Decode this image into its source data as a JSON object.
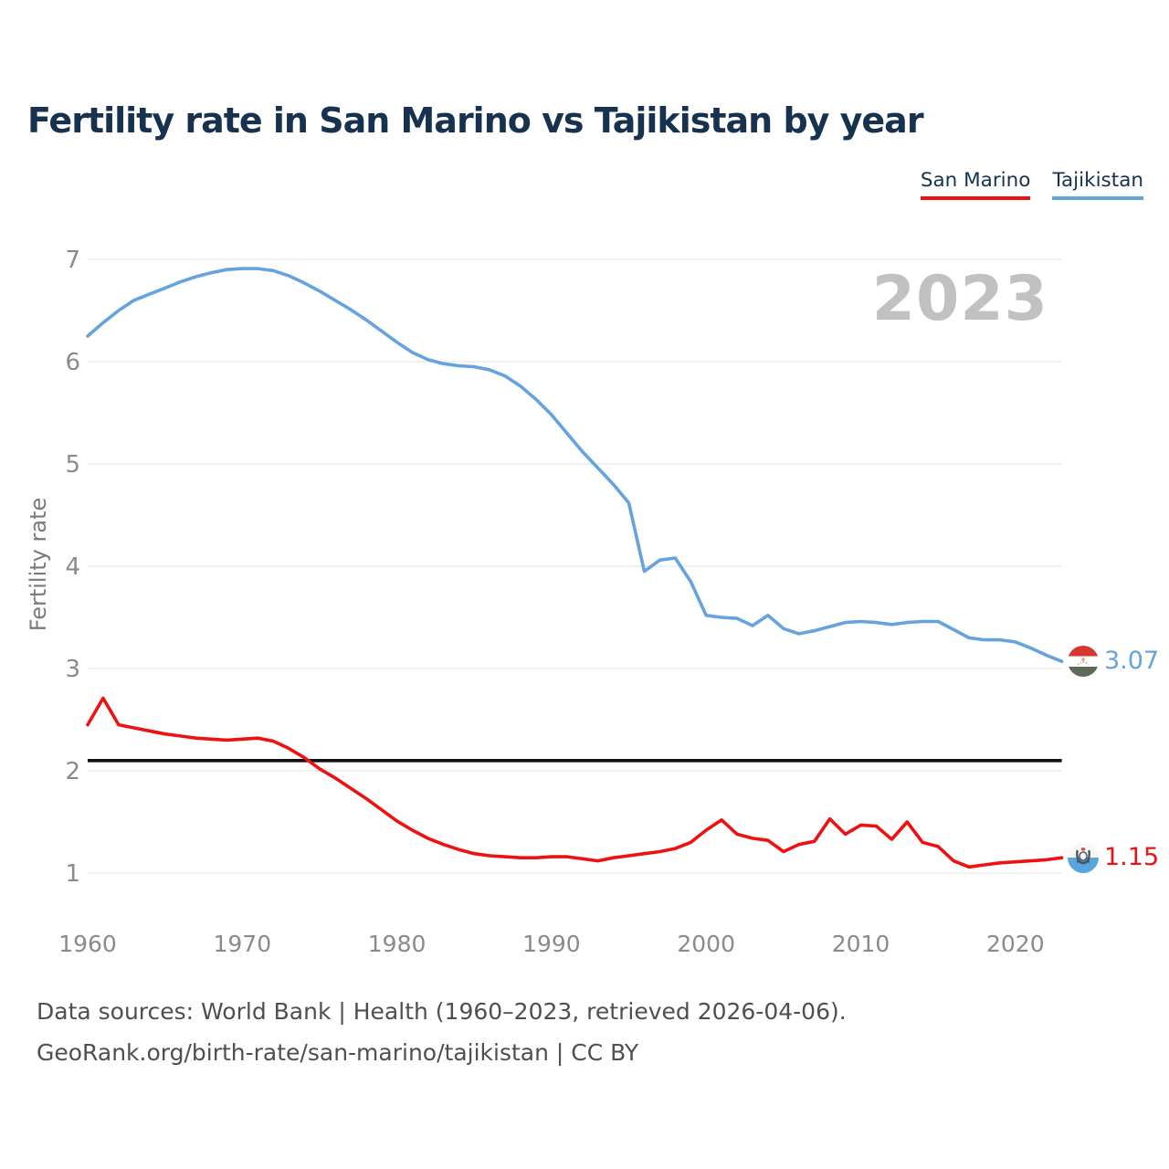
{
  "title": {
    "text": "Fertility rate in San Marino vs Tajikistan by year",
    "color": "#16324f"
  },
  "legend": [
    {
      "label": "San Marino",
      "color": "#ee1111"
    },
    {
      "label": "Tajikistan",
      "color": "#64a3de"
    }
  ],
  "watermark": {
    "text": "2023",
    "color": "#c1c1c1"
  },
  "y_axis": {
    "label": "Fertility rate",
    "ticks": [
      7,
      6,
      5,
      4,
      3,
      2,
      1
    ]
  },
  "x_axis": {
    "ticks": [
      1960,
      1970,
      1980,
      1990,
      2000,
      2010,
      2020
    ]
  },
  "reference_line": {
    "value": 2.1,
    "color": "#111111"
  },
  "end_labels": [
    {
      "series": "Tajikistan",
      "value": "3.07",
      "color": "#64a3de",
      "flag": "tajikistan-flag"
    },
    {
      "series": "San Marino",
      "value": "1.15",
      "color": "#ee1111",
      "flag": "san-marino-flag"
    }
  ],
  "footer": {
    "line1": "Data sources: World Bank | Health (1960–2023, retrieved 2026-04-06).",
    "line2": "GeoRank.org/birth-rate/san-marino/tajikistan | CC BY"
  },
  "chart_data": {
    "type": "line",
    "title": "Fertility rate in San Marino vs Tajikistan by year",
    "ylabel": "Fertility rate",
    "ylim": [
      0.6,
      7.3
    ],
    "xlim": [
      1960,
      2023
    ],
    "grid": "horizontal",
    "legend_position": "top-right",
    "annotations": {
      "replacement_level_line": 2.1,
      "watermark_year": "2023"
    },
    "x": [
      1960,
      1961,
      1962,
      1963,
      1964,
      1965,
      1966,
      1967,
      1968,
      1969,
      1970,
      1971,
      1972,
      1973,
      1974,
      1975,
      1976,
      1977,
      1978,
      1979,
      1980,
      1981,
      1982,
      1983,
      1984,
      1985,
      1986,
      1987,
      1988,
      1989,
      1990,
      1991,
      1992,
      1993,
      1994,
      1995,
      1996,
      1997,
      1998,
      1999,
      2000,
      2001,
      2002,
      2003,
      2004,
      2005,
      2006,
      2007,
      2008,
      2009,
      2010,
      2011,
      2012,
      2013,
      2014,
      2015,
      2016,
      2017,
      2018,
      2019,
      2020,
      2021,
      2022,
      2023
    ],
    "series": [
      {
        "name": "Tajikistan",
        "color": "#64a3de",
        "end_value": 3.07,
        "values": [
          6.25,
          6.38,
          6.5,
          6.6,
          6.66,
          6.72,
          6.78,
          6.83,
          6.87,
          6.9,
          6.91,
          6.91,
          6.89,
          6.84,
          6.77,
          6.69,
          6.6,
          6.51,
          6.41,
          6.3,
          6.19,
          6.09,
          6.02,
          5.98,
          5.96,
          5.95,
          5.92,
          5.86,
          5.76,
          5.63,
          5.48,
          5.3,
          5.12,
          4.96,
          4.8,
          4.62,
          3.95,
          4.06,
          4.08,
          3.85,
          3.52,
          3.5,
          3.49,
          3.42,
          3.52,
          3.39,
          3.34,
          3.37,
          3.41,
          3.45,
          3.46,
          3.45,
          3.43,
          3.45,
          3.46,
          3.46,
          3.38,
          3.3,
          3.28,
          3.28,
          3.26,
          3.2,
          3.13,
          3.07
        ]
      },
      {
        "name": "San Marino",
        "color": "#ee1111",
        "end_value": 1.15,
        "values": [
          2.45,
          2.71,
          2.45,
          2.42,
          2.39,
          2.36,
          2.34,
          2.32,
          2.31,
          2.3,
          2.31,
          2.32,
          2.29,
          2.22,
          2.13,
          2.02,
          1.93,
          1.83,
          1.73,
          1.62,
          1.51,
          1.42,
          1.34,
          1.28,
          1.23,
          1.19,
          1.17,
          1.16,
          1.15,
          1.15,
          1.16,
          1.16,
          1.14,
          1.12,
          1.15,
          1.17,
          1.19,
          1.21,
          1.24,
          1.3,
          1.42,
          1.52,
          1.38,
          1.34,
          1.32,
          1.21,
          1.28,
          1.31,
          1.53,
          1.38,
          1.47,
          1.46,
          1.33,
          1.5,
          1.3,
          1.26,
          1.12,
          1.06,
          1.08,
          1.1,
          1.11,
          1.12,
          1.13,
          1.15
        ]
      }
    ]
  }
}
